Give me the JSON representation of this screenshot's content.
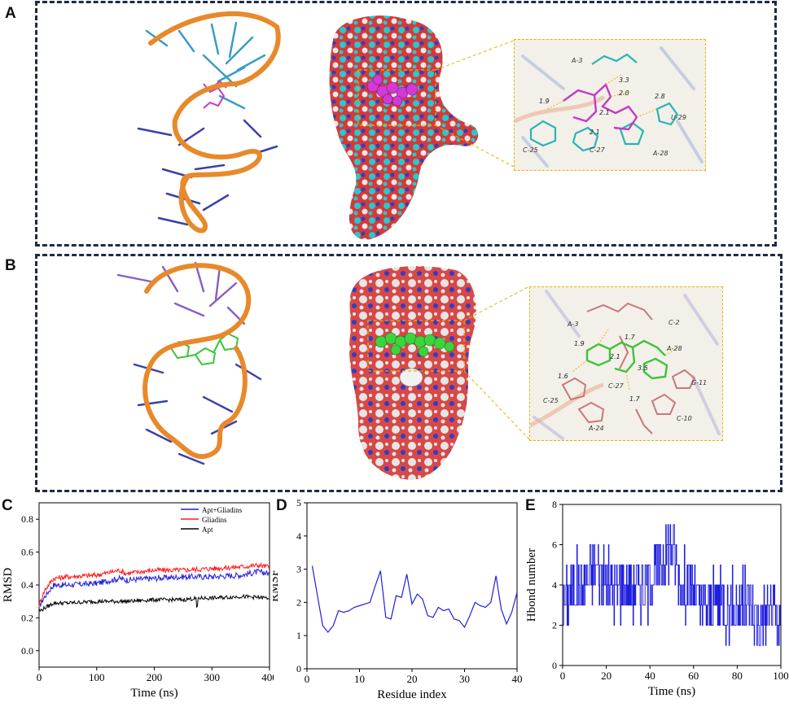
{
  "panels": {
    "a": {
      "letter": "A",
      "inset_labels": [
        "A-3",
        "3.3",
        "2.0",
        "2.8",
        "1.9",
        "2.1",
        "U-29",
        "2.1",
        "C-25",
        "C-27",
        "A-28"
      ],
      "ligand_color": "#c23cc4"
    },
    "b": {
      "letter": "B",
      "inset_labels": [
        "A-3",
        "C-2",
        "1.7",
        "1.9",
        "A-28",
        "2.1",
        "3.5",
        "1.6",
        "C-27",
        "G-11",
        "C-25",
        "1.7",
        "A-24",
        "C-10"
      ],
      "ligand_color": "#3cc43c"
    },
    "c": {
      "letter": "C"
    },
    "d": {
      "letter": "D"
    },
    "e": {
      "letter": "E"
    }
  },
  "colors": {
    "frame": "#1f2a44",
    "backbone": "#e8892a",
    "inset_border": "#e8b400",
    "series_blue": "#1f1fe0",
    "series_red": "#ff1a1a",
    "series_black": "#000000"
  },
  "chart_data": [
    {
      "type": "line",
      "xlabel": "Time (ns)",
      "ylabel": "RMSD",
      "xlim": [
        0,
        400
      ],
      "ylim": [
        -0.1,
        0.9
      ],
      "xticks": [
        "0",
        "100",
        "200",
        "300",
        "400"
      ],
      "yticks": [
        "0.0",
        "0.2",
        "0.4",
        "0.6",
        "0.8"
      ],
      "legend_position": "top-right",
      "series": [
        {
          "name": "Apt+Gliadins",
          "color": "#1f1fe0",
          "x": [
            0,
            10,
            25,
            50,
            100,
            140,
            150,
            200,
            250,
            300,
            350,
            380,
            400
          ],
          "y": [
            0.27,
            0.33,
            0.4,
            0.4,
            0.41,
            0.44,
            0.43,
            0.44,
            0.45,
            0.45,
            0.46,
            0.48,
            0.47
          ]
        },
        {
          "name": "Gliadins",
          "color": "#ff1a1a",
          "x": [
            0,
            10,
            25,
            50,
            100,
            140,
            150,
            200,
            250,
            300,
            350,
            380,
            400
          ],
          "y": [
            0.28,
            0.37,
            0.44,
            0.45,
            0.46,
            0.49,
            0.47,
            0.49,
            0.49,
            0.5,
            0.51,
            0.52,
            0.51
          ]
        },
        {
          "name": "Apt",
          "color": "#000000",
          "x": [
            0,
            10,
            25,
            50,
            100,
            150,
            200,
            250,
            275,
            300,
            350,
            400
          ],
          "y": [
            0.24,
            0.26,
            0.29,
            0.29,
            0.3,
            0.3,
            0.31,
            0.31,
            0.32,
            0.32,
            0.33,
            0.32
          ]
        }
      ]
    },
    {
      "type": "line",
      "xlabel": "Residue index",
      "ylabel": "RMSF",
      "xlim": [
        0,
        40
      ],
      "ylim": [
        0,
        5
      ],
      "xticks": [
        "0",
        "10",
        "20",
        "30",
        "40"
      ],
      "yticks": [
        "0",
        "1",
        "2",
        "3",
        "4",
        "5"
      ],
      "series": [
        {
          "color": "#1f1fe0",
          "x": [
            1,
            2,
            3,
            4,
            5,
            6,
            7,
            8,
            9,
            10,
            11,
            12,
            13,
            14,
            15,
            16,
            17,
            18,
            19,
            20,
            21,
            22,
            23,
            24,
            25,
            26,
            27,
            28,
            29,
            30,
            31,
            32,
            33,
            34,
            35,
            36,
            37,
            38,
            39,
            40
          ],
          "y": [
            3.1,
            2.2,
            1.3,
            1.1,
            1.3,
            1.75,
            1.7,
            1.75,
            1.85,
            1.9,
            1.95,
            2.0,
            2.5,
            2.95,
            1.55,
            1.5,
            2.2,
            2.15,
            2.85,
            1.95,
            2.25,
            2.1,
            1.6,
            1.55,
            1.85,
            1.75,
            1.8,
            1.5,
            1.45,
            1.25,
            1.6,
            2.0,
            1.9,
            1.85,
            2.0,
            2.8,
            1.8,
            1.35,
            1.7,
            2.3
          ]
        }
      ]
    },
    {
      "type": "line",
      "xlabel": "Time (ns)",
      "ylabel": "Hbond number",
      "xlim": [
        0,
        100
      ],
      "ylim": [
        0,
        8
      ],
      "xticks": [
        "0",
        "20",
        "40",
        "60",
        "80",
        "100"
      ],
      "yticks": [
        "0",
        "2",
        "4",
        "6",
        "8"
      ],
      "series": [
        {
          "color": "#1f1fe0",
          "x": [
            0,
            5,
            10,
            15,
            20,
            25,
            30,
            35,
            40,
            43,
            45,
            48,
            50,
            52,
            55,
            60,
            63,
            65,
            70,
            75,
            80,
            85,
            90,
            95,
            100
          ],
          "y": [
            3,
            4,
            4,
            5,
            4,
            4,
            4,
            4,
            4,
            5,
            5,
            6,
            6,
            5,
            4,
            4,
            3,
            3,
            3,
            3,
            3,
            3,
            2,
            3,
            2
          ]
        }
      ]
    }
  ]
}
